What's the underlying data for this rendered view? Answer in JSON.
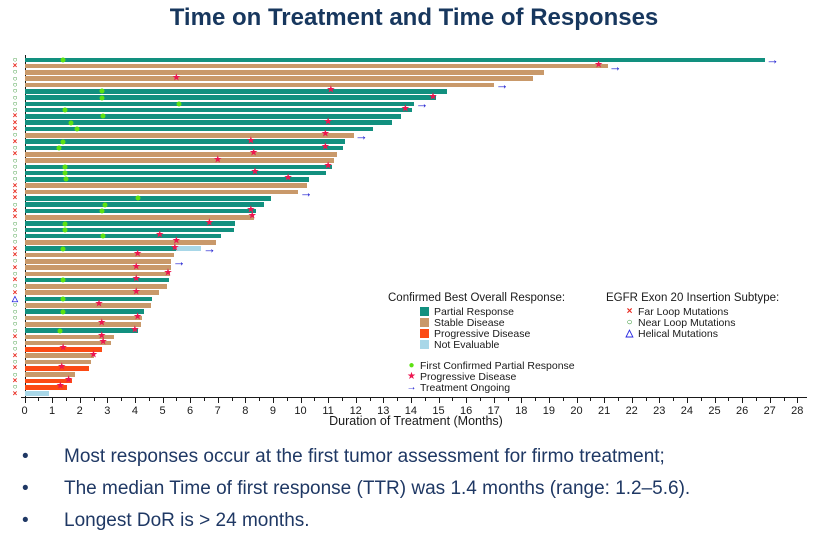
{
  "title": "Time on Treatment and Time of Responses",
  "bullets": [
    "Most responses occur at the first tumor assessment for firmo treatment;",
    "The median Time of first response (TTR) was 1.4 months (range: 1.2–5.6).",
    "Longest DoR is > 24 months."
  ],
  "chart_data": {
    "type": "bar",
    "subtype_note": "horizontal swimmer plot, one bar per patient",
    "xlabel": "Duration of Treatment (Months)",
    "xlim": [
      0,
      28.4
    ],
    "xtick_step": 1,
    "xminor_step": 0.5,
    "xtick_labels": [
      "0",
      "1",
      "2",
      "3",
      "4",
      "5",
      "6",
      "7",
      "8",
      "9",
      "10",
      "11",
      "12",
      "13",
      "14",
      "15",
      "16",
      "17",
      "18",
      "19",
      "20",
      "21",
      "22",
      "23",
      "24",
      "25",
      "26",
      "27",
      "28"
    ],
    "colors": {
      "partial_response": "#12907f",
      "stable_disease": "#c9996a",
      "progressive_disease": "#fc4a14",
      "not_evaluable": "#a8d7e8",
      "first_response_dot": "#5ce112",
      "progression_star": "#ed1650",
      "ongoing_arrow": "#1414cf",
      "far_loop": "#e8281e",
      "near_loop": "#1f8a1f",
      "helical": "#2727e0",
      "title_navy": "#17375e",
      "bullet_navy": "#1f3864"
    },
    "legend_response": {
      "title": "Confirmed Best Overall Response:",
      "items": [
        {
          "label": "Partial Response",
          "color_key": "partial_response"
        },
        {
          "label": "Stable Disease",
          "color_key": "stable_disease"
        },
        {
          "label": "Progressive Disease",
          "color_key": "progressive_disease"
        },
        {
          "label": "Not Evaluable",
          "color_key": "not_evaluable"
        }
      ],
      "marker_items": [
        {
          "label": "First Confirmed Partial Response",
          "marker": "dot"
        },
        {
          "label": "Progressive Disease",
          "marker": "star"
        },
        {
          "label": "Treatment Ongoing",
          "marker": "arrow"
        }
      ]
    },
    "legend_subtype": {
      "title": "EGFR Exon 20 Insertion Subtype:",
      "items": [
        {
          "label": "Far Loop Mutations",
          "marker": "far"
        },
        {
          "label": "Near Loop Mutations",
          "marker": "near"
        },
        {
          "label": "Helical Mutations",
          "marker": "helical"
        }
      ]
    },
    "rows": [
      {
        "subtype": "near",
        "response": "PR",
        "length": 26.8,
        "dot": 1.4,
        "star": null,
        "ongoing": true
      },
      {
        "subtype": "far",
        "response": "SD",
        "length": 21.1,
        "dot": null,
        "star": 20.8,
        "ongoing": true
      },
      {
        "subtype": "near",
        "response": "SD",
        "length": 18.8,
        "dot": null,
        "star": null,
        "ongoing": false
      },
      {
        "subtype": "near",
        "response": "SD",
        "length": 18.4,
        "dot": null,
        "star": 5.5,
        "ongoing": false
      },
      {
        "subtype": "near",
        "response": "SD",
        "length": 17.0,
        "dot": null,
        "star": null,
        "ongoing": true
      },
      {
        "subtype": "near",
        "response": "PR",
        "length": 15.3,
        "dot": 2.8,
        "star": 11.1,
        "ongoing": false
      },
      {
        "subtype": "near",
        "response": "PR",
        "length": 14.9,
        "dot": 2.8,
        "star": 14.8,
        "ongoing": false
      },
      {
        "subtype": "near",
        "response": "PR",
        "length": 14.1,
        "dot": 5.6,
        "star": null,
        "ongoing": true
      },
      {
        "subtype": "near",
        "response": "PR",
        "length": 14.0,
        "dot": 1.45,
        "star": 13.8,
        "ongoing": false
      },
      {
        "subtype": "far",
        "response": "PR",
        "length": 13.6,
        "dot": 2.85,
        "star": null,
        "ongoing": false
      },
      {
        "subtype": "far",
        "response": "PR",
        "length": 13.3,
        "dot": 1.7,
        "star": 11.0,
        "ongoing": false
      },
      {
        "subtype": "far",
        "response": "PR",
        "length": 12.6,
        "dot": 1.9,
        "star": null,
        "ongoing": false
      },
      {
        "subtype": "near",
        "response": "SD",
        "length": 11.9,
        "dot": null,
        "star": 10.9,
        "ongoing": true
      },
      {
        "subtype": "far",
        "response": "PR",
        "length": 11.6,
        "dot": 1.4,
        "star": 8.2,
        "ongoing": false
      },
      {
        "subtype": "near",
        "response": "PR",
        "length": 11.5,
        "dot": 1.25,
        "star": 10.9,
        "ongoing": false
      },
      {
        "subtype": "far",
        "response": "SD",
        "length": 11.3,
        "dot": null,
        "star": 8.3,
        "ongoing": false
      },
      {
        "subtype": "near",
        "response": "SD",
        "length": 11.2,
        "dot": null,
        "star": 7.0,
        "ongoing": false
      },
      {
        "subtype": "near",
        "response": "PR",
        "length": 11.1,
        "dot": 1.45,
        "star": 11.0,
        "ongoing": false
      },
      {
        "subtype": "near",
        "response": "PR",
        "length": 10.9,
        "dot": 1.45,
        "star": 8.35,
        "ongoing": false
      },
      {
        "subtype": "near",
        "response": "PR",
        "length": 10.3,
        "dot": 1.5,
        "star": 9.55,
        "ongoing": false
      },
      {
        "subtype": "far",
        "response": "SD",
        "length": 10.2,
        "dot": null,
        "star": null,
        "ongoing": false
      },
      {
        "subtype": "far",
        "response": "SD",
        "length": 9.9,
        "dot": null,
        "star": null,
        "ongoing": true
      },
      {
        "subtype": "far",
        "response": "PR",
        "length": 8.9,
        "dot": 4.1,
        "star": null,
        "ongoing": false
      },
      {
        "subtype": "near",
        "response": "PR",
        "length": 8.65,
        "dot": 2.9,
        "star": null,
        "ongoing": false
      },
      {
        "subtype": "far",
        "response": "PR",
        "length": 8.35,
        "dot": 2.8,
        "star": 8.2,
        "ongoing": false
      },
      {
        "subtype": "far",
        "response": "SD",
        "length": 8.3,
        "dot": null,
        "star": 8.25,
        "ongoing": false
      },
      {
        "subtype": "near",
        "response": "PR",
        "length": 7.6,
        "dot": 1.45,
        "star": 6.7,
        "ongoing": false
      },
      {
        "subtype": "near",
        "response": "PR",
        "length": 7.55,
        "dot": 1.45,
        "star": null,
        "ongoing": false
      },
      {
        "subtype": "near",
        "response": "PR",
        "length": 7.1,
        "dot": 2.85,
        "star": 4.9,
        "ongoing": false
      },
      {
        "subtype": "near",
        "response": "SD",
        "length": 6.9,
        "dot": null,
        "star": 5.5,
        "ongoing": false
      },
      {
        "subtype": "far",
        "response": "PR",
        "length": 6.4,
        "dot": 1.4,
        "star": 5.45,
        "ongoing": true,
        "ne_from": 5.5
      },
      {
        "subtype": "far",
        "response": "SD",
        "length": 5.4,
        "dot": null,
        "star": 4.1,
        "ongoing": false
      },
      {
        "subtype": "near",
        "response": "SD",
        "length": 5.3,
        "dot": null,
        "star": null,
        "ongoing": true
      },
      {
        "subtype": "far",
        "response": "SD",
        "length": 5.3,
        "dot": null,
        "star": 4.05,
        "ongoing": false
      },
      {
        "subtype": "near",
        "response": "SD",
        "length": 5.25,
        "dot": null,
        "star": 5.2,
        "ongoing": false
      },
      {
        "subtype": "far",
        "response": "PR",
        "length": 5.2,
        "dot": 1.4,
        "star": 4.05,
        "ongoing": false
      },
      {
        "subtype": "near",
        "response": "SD",
        "length": 5.15,
        "dot": null,
        "star": null,
        "ongoing": false
      },
      {
        "subtype": "far",
        "response": "SD",
        "length": 4.85,
        "dot": null,
        "star": 4.05,
        "ongoing": false
      },
      {
        "subtype": "helical",
        "response": "PR",
        "length": 4.6,
        "dot": 1.4,
        "star": null,
        "ongoing": false
      },
      {
        "subtype": "near",
        "response": "SD",
        "length": 4.55,
        "dot": null,
        "star": 2.7,
        "ongoing": false
      },
      {
        "subtype": "near",
        "response": "PR",
        "length": 4.3,
        "dot": 1.4,
        "star": null,
        "ongoing": false
      },
      {
        "subtype": "near",
        "response": "SD",
        "length": 4.25,
        "dot": null,
        "star": 4.1,
        "ongoing": false
      },
      {
        "subtype": "near",
        "response": "SD",
        "length": 4.2,
        "dot": null,
        "star": 2.8,
        "ongoing": false
      },
      {
        "subtype": "near",
        "response": "PR",
        "length": 4.1,
        "dot": 1.3,
        "star": 4.0,
        "ongoing": false
      },
      {
        "subtype": "far",
        "response": "SD",
        "length": 3.2,
        "dot": null,
        "star": 2.8,
        "ongoing": false
      },
      {
        "subtype": "near",
        "response": "SD",
        "length": 3.1,
        "dot": null,
        "star": 2.85,
        "ongoing": false
      },
      {
        "subtype": "near",
        "response": "PD",
        "length": 2.8,
        "dot": null,
        "star": 1.4,
        "ongoing": false
      },
      {
        "subtype": "far",
        "response": "SD",
        "length": 2.5,
        "dot": null,
        "star": 2.5,
        "ongoing": false
      },
      {
        "subtype": "near",
        "response": "SD",
        "length": 2.4,
        "dot": null,
        "star": null,
        "ongoing": false
      },
      {
        "subtype": "far",
        "response": "PD",
        "length": 2.3,
        "dot": null,
        "star": 1.35,
        "ongoing": false
      },
      {
        "subtype": "near",
        "response": "SD",
        "length": 1.8,
        "dot": null,
        "star": null,
        "ongoing": false
      },
      {
        "subtype": "far",
        "response": "PD",
        "length": 1.7,
        "dot": null,
        "star": 1.6,
        "ongoing": false
      },
      {
        "subtype": "near",
        "response": "PD",
        "length": 1.5,
        "dot": null,
        "star": 1.3,
        "ongoing": false
      },
      {
        "subtype": "far",
        "response": "NE",
        "length": 0.85,
        "dot": null,
        "star": null,
        "ongoing": false
      }
    ]
  }
}
